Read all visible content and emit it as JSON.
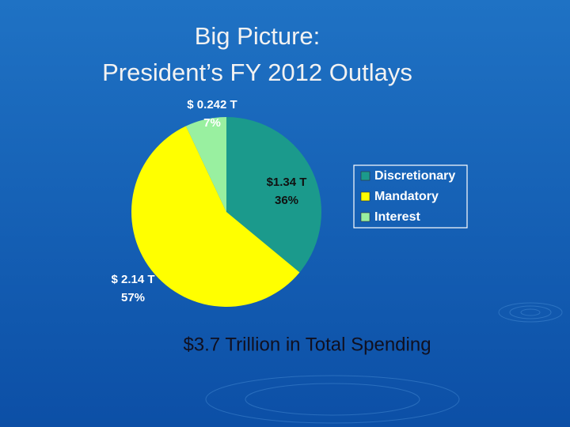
{
  "chart_data": {
    "type": "pie",
    "title": [
      "Big Picture:",
      "President’s FY 2012 Outlays"
    ],
    "categories": [
      "Discretionary",
      "Mandatory",
      "Interest"
    ],
    "values": [
      36,
      57,
      7
    ],
    "value_labels": [
      "36%",
      "57%",
      "7%"
    ],
    "amount_labels": [
      "$1.34 T",
      "$ 2.14 T",
      "$ 0.242 T"
    ],
    "colors": [
      "#1b9a8c",
      "#ffff00",
      "#99f0a0"
    ],
    "legend": "right",
    "annotation": "$3.7 Trillion in Total Spending"
  }
}
